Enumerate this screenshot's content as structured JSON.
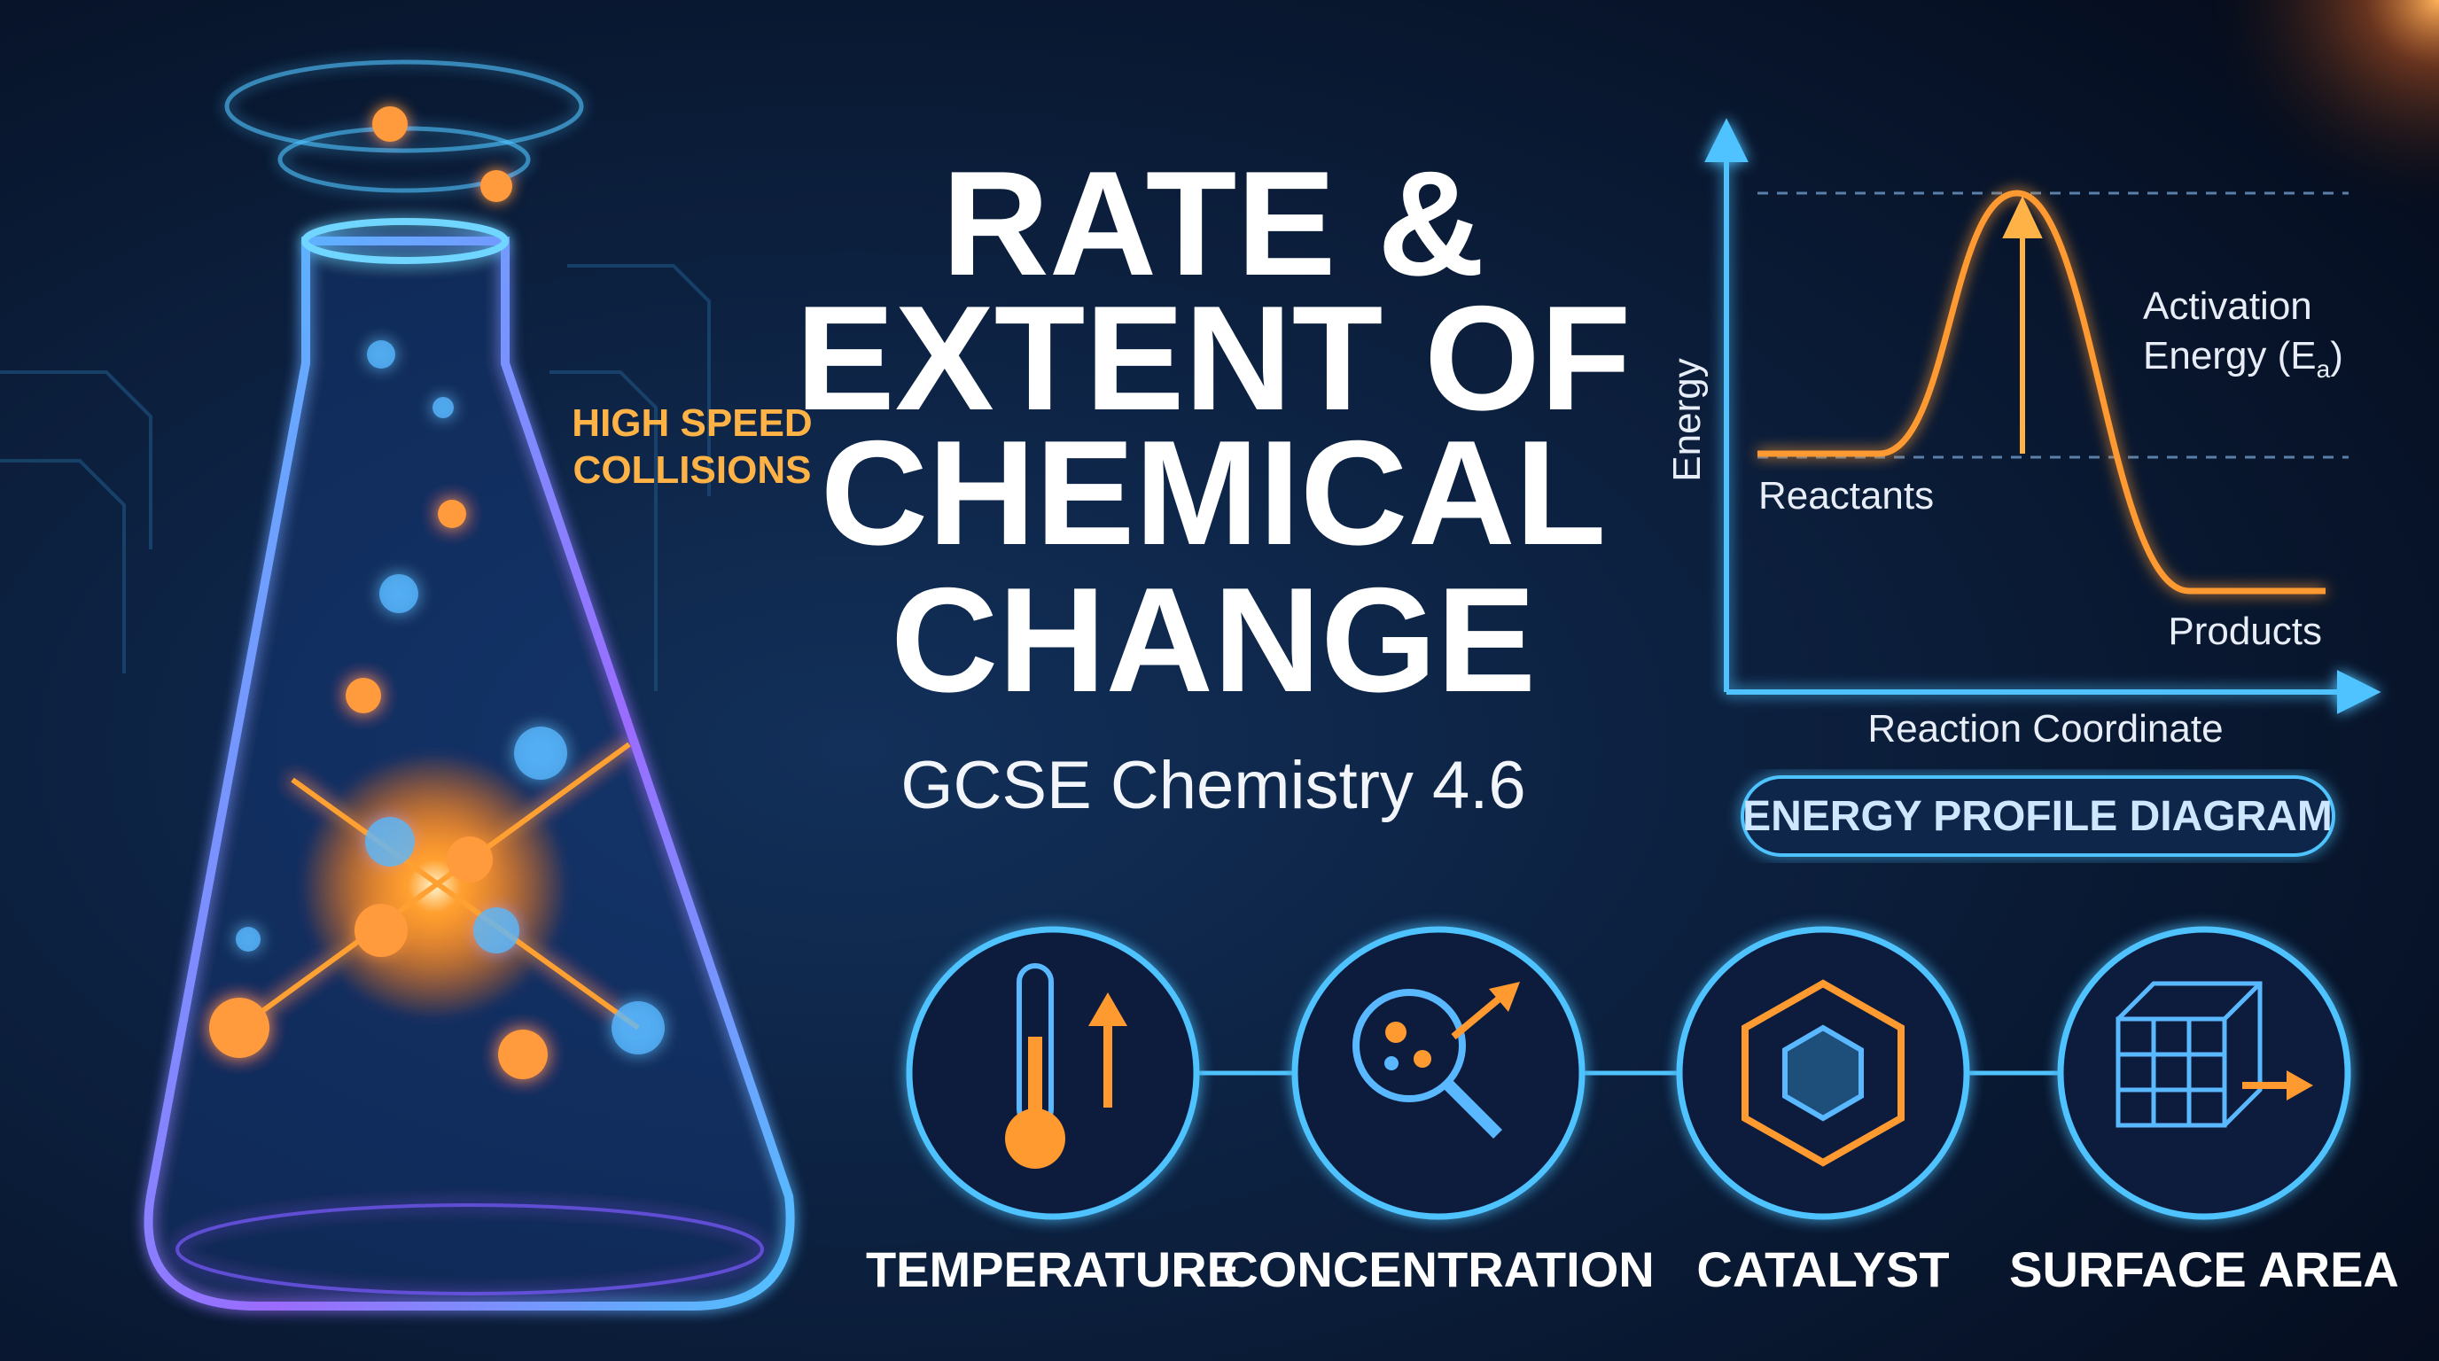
{
  "title_lines": [
    "RATE &",
    "EXTENT OF",
    "CHEMICAL",
    "CHANGE"
  ],
  "subtitle": "GCSE Chemistry 4.6",
  "callout": [
    "HIGH SPEED",
    "COLLISIONS"
  ],
  "energy_diagram": {
    "y_axis_label": "Energy",
    "x_axis_label": "Reaction Coordinate",
    "reactants": "Reactants",
    "products": "Products",
    "activation": {
      "line1": "Activation",
      "line2": "Energy (E",
      "subscript": "a",
      "close": ")"
    },
    "caption": "ENERGY PROFILE DIAGRAM"
  },
  "factors": [
    "TEMPERATURE",
    "CONCENTRATION",
    "CATALYST",
    "SURFACE AREA"
  ]
}
